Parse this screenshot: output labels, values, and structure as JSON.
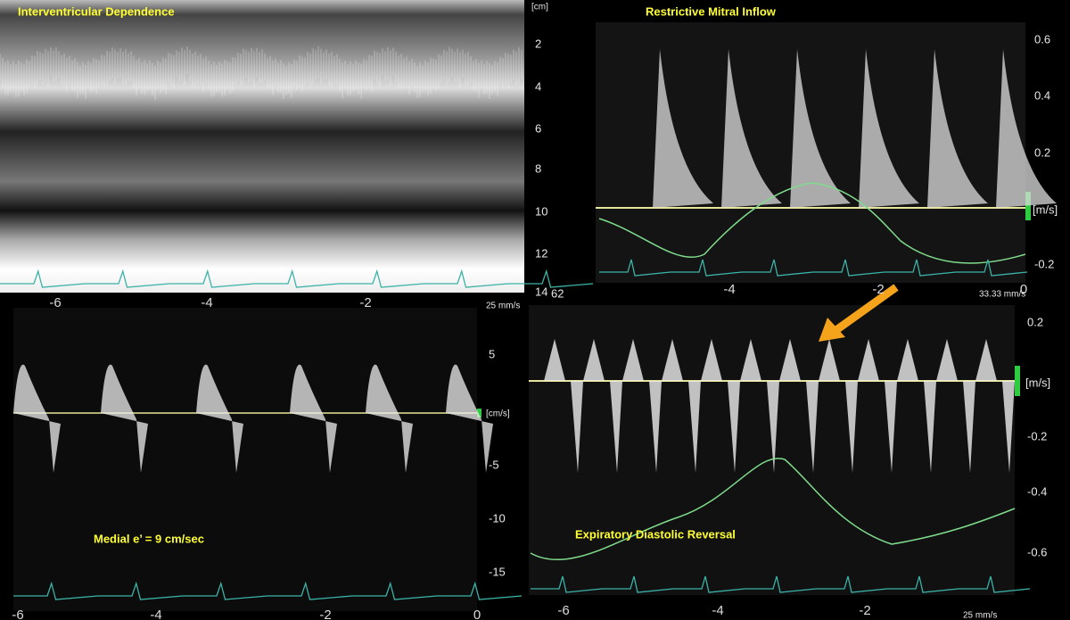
{
  "panels": [
    {
      "title": "Interventricular Dependence",
      "unit": "[cm]",
      "y_labels": [
        "2",
        "4",
        "6",
        "8",
        "10",
        "12",
        "14"
      ],
      "x_labels": [
        "-6",
        "-4",
        "-2"
      ],
      "speed": "25 mm/s"
    },
    {
      "title": "Restrictive Mitral Inflow",
      "unit": "[m/s]",
      "y_labels": [
        "0.6",
        "0.4",
        "0.2",
        "-0.2"
      ],
      "x_labels": [
        "-4",
        "-2",
        "0"
      ],
      "speed": "33.33 mm/s",
      "frame": "62"
    },
    {
      "title": "Medial e’ = 9 cm/sec",
      "unit": "[cm/s]",
      "y_labels": [
        "5",
        "-5",
        "-10",
        "-15"
      ],
      "x_labels": [
        "-6",
        "-4",
        "-2",
        "0"
      ]
    },
    {
      "title": "Expiratory Diastolic Reversal",
      "unit": "[m/s]",
      "y_labels": [
        "0.2",
        "-0.2",
        "-0.4",
        "-0.6"
      ],
      "x_labels": [
        "-6",
        "-4",
        "-2"
      ],
      "speed": "25 mm/s"
    }
  ]
}
